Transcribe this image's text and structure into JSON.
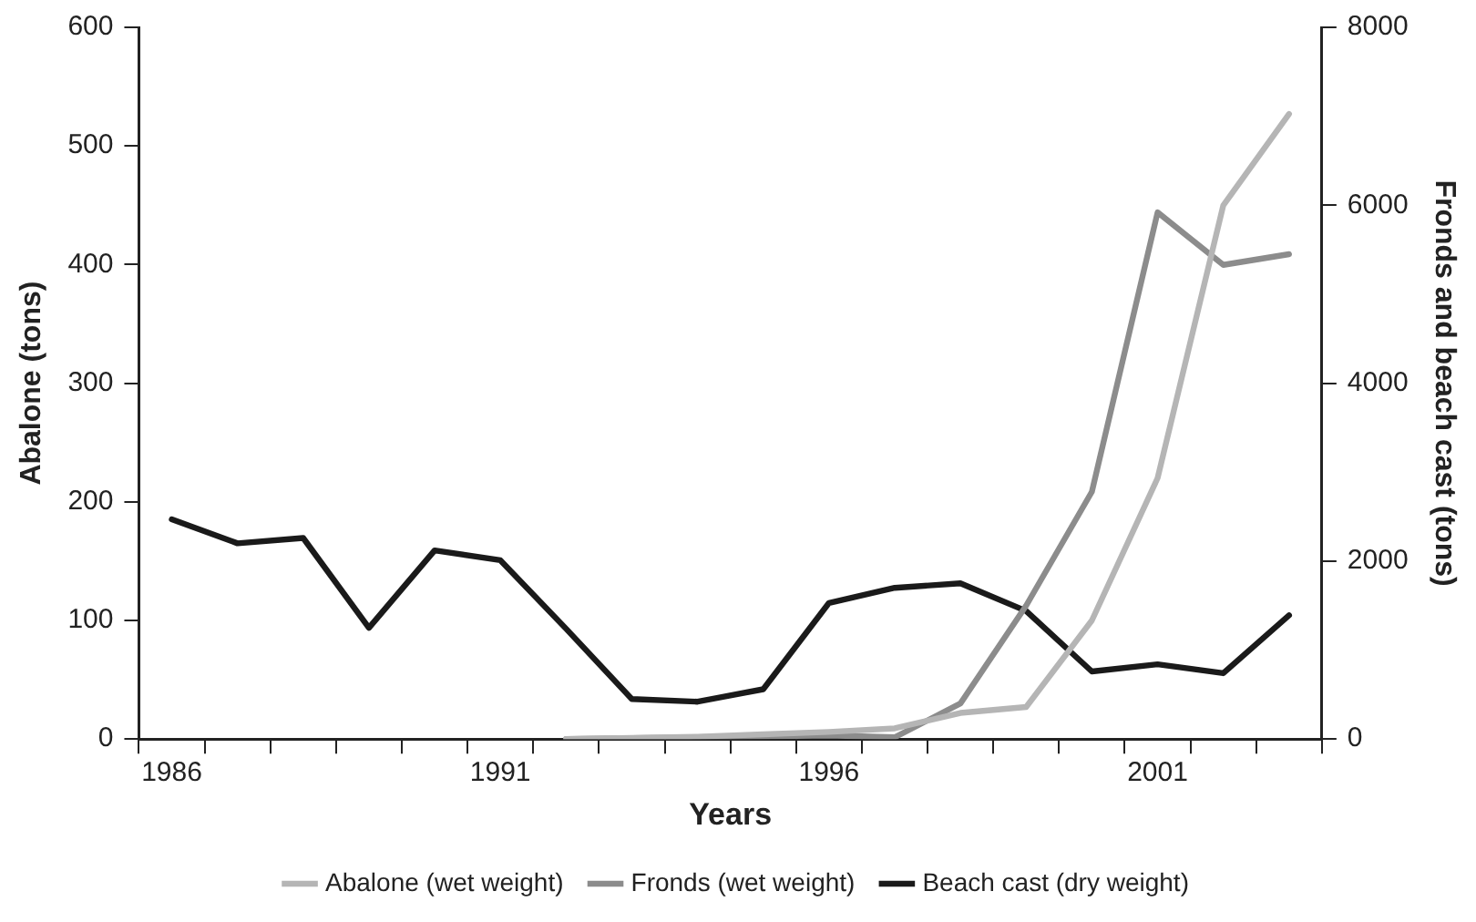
{
  "chart_data": {
    "type": "line",
    "xlabel": "Years",
    "ylabel": "Abalone (tons)",
    "y2label": "Fronds and beach cast (tons)",
    "categories": [
      "1986",
      null,
      null,
      null,
      null,
      "1991",
      null,
      null,
      null,
      null,
      "1996",
      null,
      null,
      null,
      null,
      "2001",
      null,
      null
    ],
    "ylim": [
      0,
      600
    ],
    "yticks": [
      0,
      100,
      200,
      300,
      400,
      500,
      600
    ],
    "y2lim": [
      0,
      8000
    ],
    "y2ticks": [
      0,
      2000,
      4000,
      6000,
      8000
    ],
    "series": [
      {
        "name": "Abalone (wet weight)",
        "color": "#b5b5b5",
        "values": [
          null,
          null,
          null,
          null,
          null,
          null,
          0,
          1,
          2,
          4,
          6,
          9,
          22,
          27,
          100,
          220,
          450,
          527
        ]
      },
      {
        "name": "Fronds (wet weight)",
        "color": "#8c8c8c",
        "axis": "y2",
        "values": [
          null,
          null,
          null,
          null,
          null,
          null,
          0,
          10,
          20,
          30,
          40,
          20,
          400,
          1500,
          2780,
          5920,
          5330,
          5450
        ]
      },
      {
        "name": "Beach cast (dry weight)",
        "color": "#1a1a1a",
        "axis": "y2",
        "values": [
          2470,
          2200,
          2260,
          1250,
          2120,
          2010,
          1240,
          450,
          420,
          560,
          1530,
          1700,
          1750,
          1440,
          760,
          840,
          740,
          1390
        ]
      }
    ],
    "legend": "bottom",
    "grid": false
  }
}
